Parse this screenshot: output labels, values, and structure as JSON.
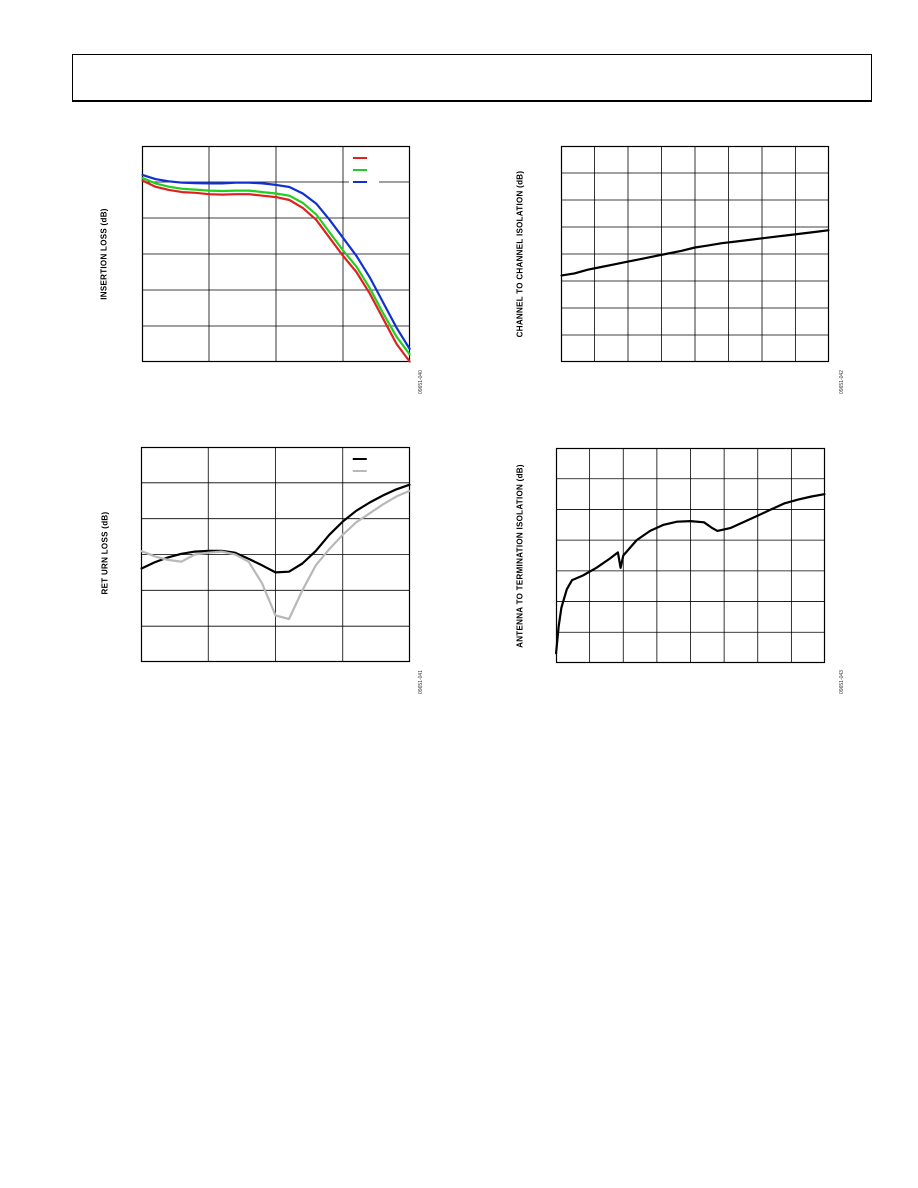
{
  "page": {
    "header": ""
  },
  "chart_data": [
    {
      "id": "insertion-loss",
      "type": "line",
      "ylabel": "INSERTION LOSS (dB)",
      "figure_number": "09651-040",
      "grid": true,
      "grid_columns": 4,
      "grid_rows": 6,
      "legend_placement": "top-right",
      "x": [
        0.0,
        0.05,
        0.1,
        0.15,
        0.2,
        0.25,
        0.3,
        0.35,
        0.4,
        0.45,
        0.5,
        0.55,
        0.6,
        0.65,
        0.7,
        0.75,
        0.8,
        0.85,
        0.9,
        0.95,
        1.0
      ],
      "series": [
        {
          "color": "#e02020",
          "values": [
            5.05,
            4.87,
            4.78,
            4.72,
            4.7,
            4.66,
            4.65,
            4.66,
            4.66,
            4.62,
            4.58,
            4.5,
            4.28,
            3.95,
            3.45,
            2.95,
            2.5,
            1.9,
            1.2,
            0.5,
            0.0
          ]
        },
        {
          "color": "#20d020",
          "values": [
            5.12,
            4.96,
            4.87,
            4.81,
            4.79,
            4.76,
            4.75,
            4.76,
            4.76,
            4.72,
            4.68,
            4.62,
            4.42,
            4.1,
            3.6,
            3.1,
            2.65,
            2.05,
            1.35,
            0.7,
            0.2
          ]
        },
        {
          "color": "#1030d0",
          "values": [
            5.2,
            5.08,
            5.02,
            4.98,
            4.97,
            4.96,
            4.96,
            4.98,
            4.98,
            4.96,
            4.92,
            4.86,
            4.68,
            4.4,
            3.95,
            3.45,
            2.95,
            2.35,
            1.65,
            0.95,
            0.35
          ]
        }
      ],
      "yrange": [
        0,
        6
      ],
      "xrange": [
        0,
        1
      ]
    },
    {
      "id": "channel-isolation",
      "type": "line",
      "ylabel": "CHANNEL TO CHANNEL ISOLATION (dB)",
      "figure_number": "09651-042",
      "grid": true,
      "grid_columns": 8,
      "grid_rows": 8,
      "x": [
        0.0,
        0.05,
        0.1,
        0.15,
        0.2,
        0.25,
        0.3,
        0.35,
        0.4,
        0.45,
        0.5,
        0.55,
        0.6,
        0.65,
        0.7,
        0.75,
        0.8,
        0.85,
        0.9,
        0.95,
        1.0
      ],
      "series": [
        {
          "color": "#000000",
          "values": [
            3.2,
            3.28,
            3.42,
            3.52,
            3.62,
            3.72,
            3.82,
            3.92,
            4.02,
            4.12,
            4.24,
            4.32,
            4.4,
            4.46,
            4.52,
            4.58,
            4.64,
            4.7,
            4.76,
            4.82,
            4.88
          ]
        }
      ],
      "yrange": [
        0,
        8
      ],
      "xrange": [
        0,
        1
      ]
    },
    {
      "id": "return-loss",
      "type": "line",
      "ylabel": "RET URN LOSS (dB)",
      "figure_number": "09651-041",
      "grid": true,
      "grid_columns": 4,
      "grid_rows": 6,
      "legend_placement": "top-right",
      "x": [
        0.0,
        0.05,
        0.1,
        0.15,
        0.2,
        0.25,
        0.3,
        0.35,
        0.4,
        0.45,
        0.5,
        0.55,
        0.6,
        0.65,
        0.7,
        0.75,
        0.8,
        0.85,
        0.9,
        0.95,
        1.0
      ],
      "series": [
        {
          "color": "#000000",
          "values": [
            2.6,
            2.78,
            2.92,
            3.02,
            3.08,
            3.1,
            3.1,
            3.05,
            2.88,
            2.7,
            2.5,
            2.52,
            2.75,
            3.1,
            3.55,
            3.92,
            4.22,
            4.45,
            4.65,
            4.82,
            4.95
          ]
        },
        {
          "color": "#b8b8b8",
          "values": [
            3.1,
            2.95,
            2.85,
            2.8,
            3.0,
            3.05,
            3.08,
            3.0,
            2.8,
            2.2,
            1.3,
            1.2,
            2.0,
            2.7,
            3.15,
            3.55,
            3.9,
            4.15,
            4.4,
            4.62,
            4.78
          ]
        }
      ],
      "yrange": [
        0,
        6
      ],
      "xrange": [
        0,
        1
      ]
    },
    {
      "id": "antenna-isolation",
      "type": "line",
      "ylabel": "ANTENNA TO TERMINATION ISOLATION (dB)",
      "figure_number": "09651-043",
      "grid": true,
      "grid_columns": 8,
      "grid_rows": 7,
      "x": [
        0.0,
        0.01,
        0.02,
        0.04,
        0.06,
        0.1,
        0.15,
        0.2,
        0.23,
        0.24,
        0.25,
        0.3,
        0.35,
        0.4,
        0.45,
        0.5,
        0.55,
        0.58,
        0.6,
        0.65,
        0.7,
        0.75,
        0.8,
        0.85,
        0.9,
        0.95,
        1.0
      ],
      "series": [
        {
          "color": "#000000",
          "values": [
            0.3,
            1.2,
            1.8,
            2.4,
            2.7,
            2.85,
            3.1,
            3.4,
            3.6,
            3.1,
            3.5,
            4.0,
            4.3,
            4.5,
            4.6,
            4.62,
            4.58,
            4.4,
            4.3,
            4.4,
            4.6,
            4.8,
            5.0,
            5.2,
            5.32,
            5.42,
            5.5
          ]
        }
      ],
      "yrange": [
        0,
        7
      ],
      "xrange": [
        0,
        1
      ]
    }
  ]
}
